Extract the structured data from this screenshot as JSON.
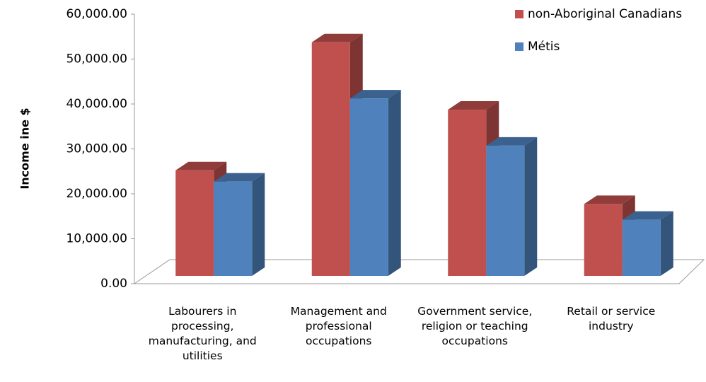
{
  "chart_data": {
    "type": "bar3d",
    "y_label": "Income ine $",
    "categories": [
      "Labourers in processing, manufacturing, and utilities",
      "Management and professional occupations",
      "Government service, religion or teaching occupations",
      "Retail or service industry"
    ],
    "series": [
      {
        "name": "non-Aboriginal Canadians",
        "color": "#c0504d",
        "values": [
          23500,
          52000,
          37000,
          16000
        ]
      },
      {
        "name": "Métis",
        "color": "#4f81bd",
        "values": [
          21000,
          39500,
          29000,
          12500
        ]
      }
    ],
    "ylim": [
      0,
      60000
    ],
    "yticks": [
      {
        "value": 0,
        "label": "0.00"
      },
      {
        "value": 10000,
        "label": "10,000.00"
      },
      {
        "value": 20000,
        "label": "20,000.00"
      },
      {
        "value": 30000,
        "label": "30,000.00"
      },
      {
        "value": 40000,
        "label": "40,000.00"
      },
      {
        "value": 50000,
        "label": "50,000.00"
      },
      {
        "value": 60000,
        "label": "60,000.00"
      }
    ],
    "legend": "top-right"
  }
}
